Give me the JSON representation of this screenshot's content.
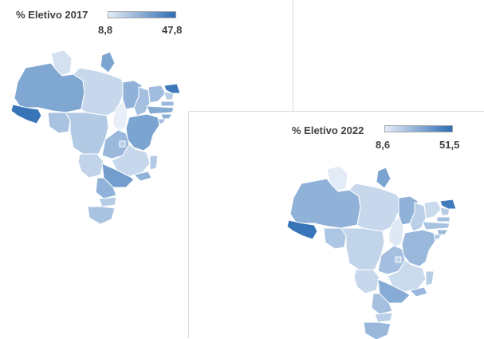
{
  "panels": [
    {
      "title": "% Eletivo 2017",
      "legend": {
        "min_label": "8,8",
        "max_label": "47,8",
        "color_low": "#e4ecf7",
        "color_high": "#2e6db4"
      },
      "state_levels": {
        "AC": 0.95,
        "AM": 0.58,
        "RR": 0.15,
        "AP": 0.6,
        "PA": 0.22,
        "RO": 0.38,
        "MT": 0.32,
        "TO": 0.05,
        "MA": 0.5,
        "PI": 0.4,
        "CE": 0.42,
        "RN": 0.3,
        "PB": 0.45,
        "PE": 0.55,
        "AL": 0.5,
        "SE": 0.4,
        "BA": 0.6,
        "MS": 0.25,
        "GO": 0.45,
        "DF": 0.3,
        "MG": 0.22,
        "ES": 0.32,
        "RJ": 0.5,
        "SP": 0.65,
        "PR": 0.5,
        "SC": 0.3,
        "RS": 0.38,
        "CE_NE": 0.92
      }
    },
    {
      "title": "% Eletivo 2022",
      "legend": {
        "min_label": "8,6",
        "max_label": "51,5",
        "color_low": "#e4ecf7",
        "color_high": "#2e6db4"
      },
      "state_levels": {
        "AC": 0.95,
        "AM": 0.5,
        "RR": 0.08,
        "AP": 0.6,
        "PA": 0.22,
        "RO": 0.35,
        "MT": 0.25,
        "TO": 0.1,
        "MA": 0.5,
        "PI": 0.28,
        "CE": 0.2,
        "RN": 0.3,
        "PB": 0.4,
        "PE": 0.38,
        "AL": 0.45,
        "SE": 0.35,
        "BA": 0.45,
        "MS": 0.22,
        "GO": 0.4,
        "DF": 0.25,
        "MG": 0.2,
        "ES": 0.3,
        "RJ": 0.45,
        "SP": 0.55,
        "PR": 0.4,
        "SC": 0.28,
        "RS": 0.45,
        "CE_NE": 0.9
      }
    }
  ]
}
